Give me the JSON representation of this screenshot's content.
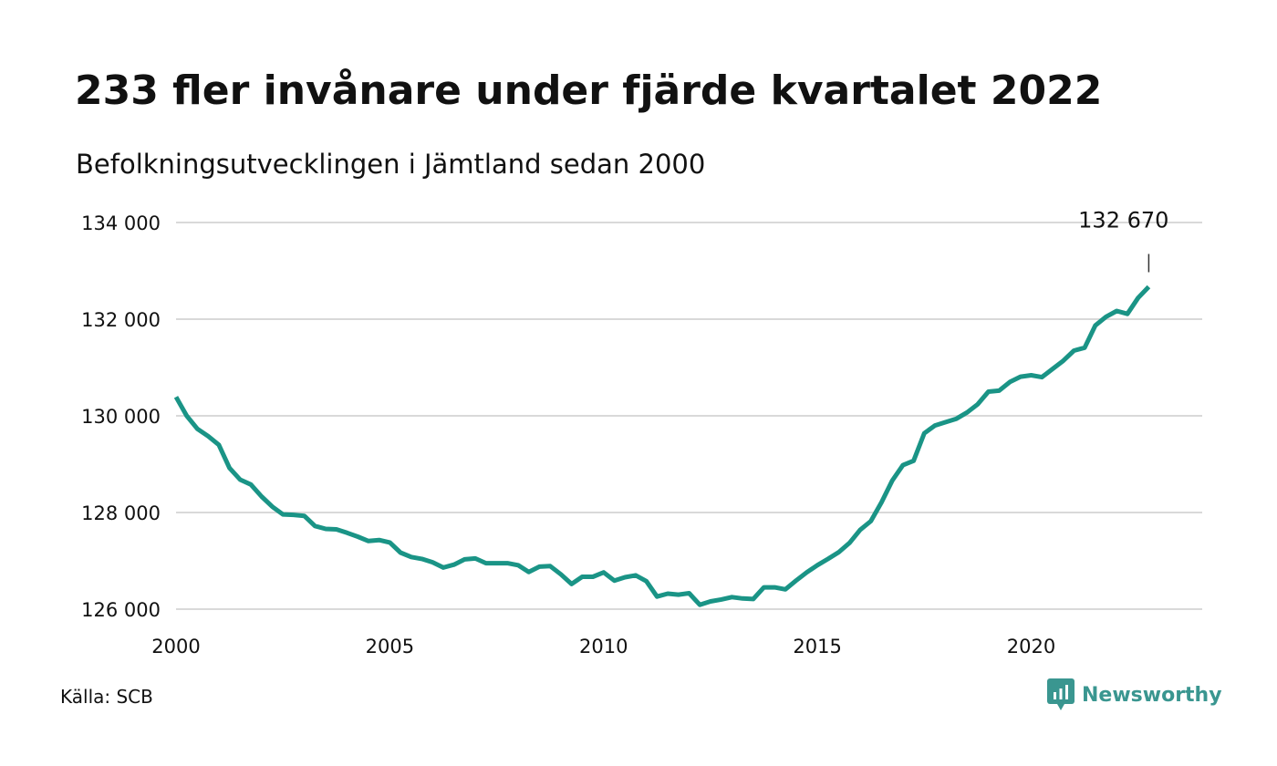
{
  "header": {
    "title": "233 fler invånare under fjärde kvartalet 2022",
    "subtitle": "Befolkningsutvecklingen i Jämtland sedan 2000"
  },
  "footer": {
    "source": "Källa: SCB",
    "brand": "Newsworthy"
  },
  "colors": {
    "line": "#1a9486",
    "grid": "#d9d9d9",
    "text": "#111111",
    "brand": "#3a9690"
  },
  "chart_data": {
    "type": "line",
    "title": "233 fler invånare under fjärde kvartalet 2022",
    "subtitle": "Befolkningsutvecklingen i Jämtland sedan 2000",
    "xlabel": "",
    "ylabel": "",
    "xlim": [
      2000,
      2024
    ],
    "ylim": [
      126000,
      134000
    ],
    "x_ticks": [
      2000,
      2005,
      2010,
      2015,
      2020
    ],
    "y_ticks": [
      126000,
      128000,
      130000,
      132000,
      134000
    ],
    "y_tick_labels": [
      "126 000",
      "128 000",
      "130 000",
      "132 000",
      "134 000"
    ],
    "grid": true,
    "legend": "none",
    "annotation": {
      "label": "132 670",
      "x": 2022.75,
      "y": 132670
    },
    "series": [
      {
        "x": [
          2000.0,
          2000.25,
          2000.5,
          2000.75,
          2001.0,
          2001.25,
          2001.5,
          2001.75,
          2002.0,
          2002.25,
          2002.5,
          2002.75,
          2003.0,
          2003.25,
          2003.5,
          2003.75,
          2004.0,
          2004.25,
          2004.5,
          2004.75,
          2005.0,
          2005.25,
          2005.5,
          2005.75,
          2006.0,
          2006.25,
          2006.5,
          2006.75,
          2007.0,
          2007.25,
          2007.5,
          2007.75,
          2008.0,
          2008.25,
          2008.5,
          2008.75,
          2009.0,
          2009.25,
          2009.5,
          2009.75,
          2010.0,
          2010.25,
          2010.5,
          2010.75,
          2011.0,
          2011.25,
          2011.5,
          2011.75,
          2012.0,
          2012.25,
          2012.5,
          2012.75,
          2013.0,
          2013.25,
          2013.5,
          2013.75,
          2014.0,
          2014.25,
          2014.5,
          2014.75,
          2015.0,
          2015.25,
          2015.5,
          2015.75,
          2016.0,
          2016.25,
          2016.5,
          2016.75,
          2017.0,
          2017.25,
          2017.5,
          2017.75,
          2018.0,
          2018.25,
          2018.5,
          2018.75,
          2019.0,
          2019.25,
          2019.5,
          2019.75,
          2020.0,
          2020.25,
          2020.5,
          2020.75,
          2021.0,
          2021.25,
          2021.5,
          2021.75,
          2022.0,
          2022.25,
          2022.5,
          2022.75
        ],
        "values": [
          130390,
          130000,
          129730,
          129580,
          129400,
          128920,
          128680,
          128580,
          128330,
          128120,
          127960,
          127950,
          127930,
          127720,
          127660,
          127650,
          127580,
          127500,
          127410,
          127430,
          127380,
          127170,
          127080,
          127040,
          126970,
          126860,
          126920,
          127030,
          127050,
          126950,
          126950,
          126950,
          126910,
          126770,
          126880,
          126890,
          126720,
          126520,
          126670,
          126670,
          126760,
          126590,
          126660,
          126700,
          126580,
          126260,
          126320,
          126300,
          126330,
          126090,
          126160,
          126200,
          126250,
          126220,
          126210,
          126450,
          126450,
          126410,
          126590,
          126760,
          126910,
          127040,
          127180,
          127370,
          127640,
          127820,
          128210,
          128660,
          128980,
          129070,
          129640,
          129800,
          129870,
          129940,
          130070,
          130240,
          130500,
          130520,
          130700,
          130810,
          130840,
          130800,
          130970,
          131140,
          131350,
          131410,
          131870,
          132050,
          132170,
          132110,
          132440,
          132670
        ]
      }
    ]
  }
}
